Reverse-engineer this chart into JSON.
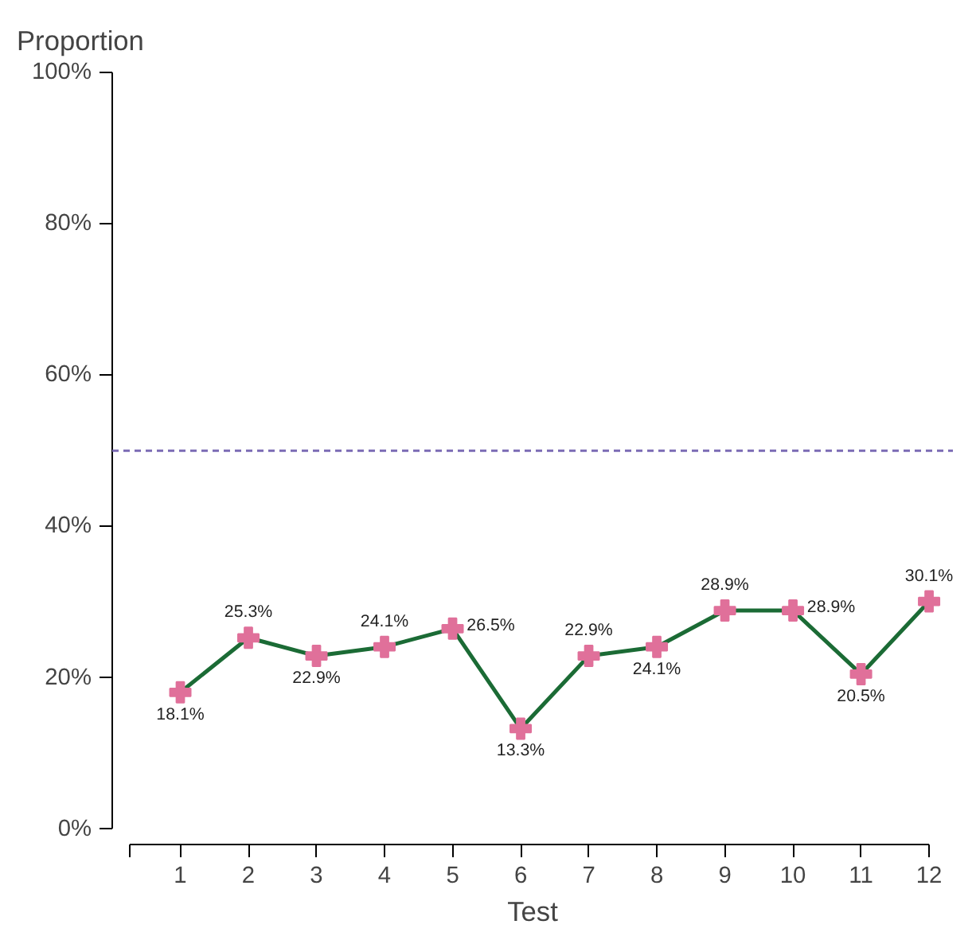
{
  "chart_data": {
    "type": "line",
    "xlabel": "Test",
    "ylabel": "Proportion",
    "x": [
      1,
      2,
      3,
      4,
      5,
      6,
      7,
      8,
      9,
      10,
      11,
      12
    ],
    "series": [
      {
        "color": "#1b6b35",
        "values": [
          18.1,
          25.3,
          22.9,
          24.1,
          26.5,
          13.3,
          22.9,
          24.1,
          28.9,
          28.9,
          20.5,
          30.1
        ],
        "colors": [
          "#e0709a",
          "#e0709a",
          "#e0709a",
          "#e0709a",
          "#e0709a",
          "#e0709a",
          "#e0709a",
          "#e0709a",
          "#e0709a",
          "#e0709a",
          "#e0709a",
          "#e0709a"
        ],
        "value_labels": [
          "18.1%",
          "25.3%",
          "22.9%",
          "24.1%",
          "26.5%",
          "13.3%",
          "22.9%",
          "24.1%",
          "28.9%",
          "28.9%",
          "20.5%",
          "30.1%"
        ]
      }
    ],
    "marker": "cross",
    "line_style": "solid",
    "xlim": [
      0.25,
      12
    ],
    "xticks": [
      {
        "value": 0.25,
        "label": null
      },
      1,
      2,
      3,
      4,
      5,
      6,
      7,
      8,
      9,
      10,
      11,
      12
    ],
    "ylim": [
      0,
      100
    ],
    "yticks": [
      {
        "value": 0,
        "label": "0%"
      },
      {
        "value": 20,
        "label": "20%"
      },
      {
        "value": 40,
        "label": "40%"
      },
      {
        "value": 60,
        "label": "60%"
      },
      {
        "value": 80,
        "label": "80%"
      },
      {
        "value": 100,
        "label": "100%"
      }
    ],
    "ref_lines": [
      {
        "axis": "y",
        "value": 50,
        "color": "#7b6bb5",
        "line_style": "dashed"
      }
    ],
    "grid": false
  }
}
